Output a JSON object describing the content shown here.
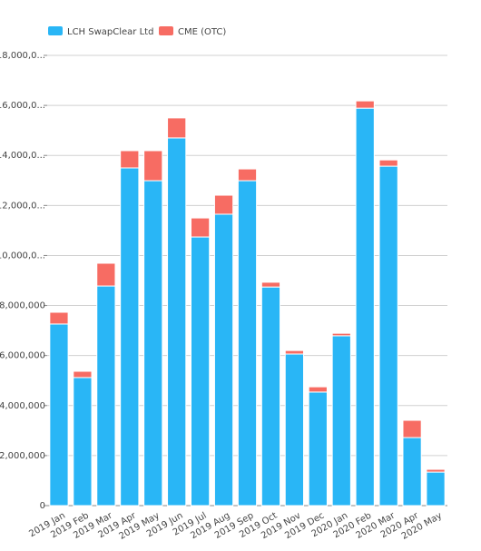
{
  "chart_data": {
    "type": "stacked_bar",
    "categories": [
      "2019 Jan",
      "2019 Feb",
      "2019 Mar",
      "2019 Apr",
      "2019 May",
      "2019 Jun",
      "2019 Jul",
      "2019 Aug",
      "2019 Sep",
      "2019 Oct",
      "2019 Nov",
      "2019 Dec",
      "2020 Jan",
      "2020 Feb",
      "2020 Mar",
      "2020 Apr",
      "2020 May"
    ],
    "series": [
      {
        "name": "LCH SwapClear Ltd",
        "color": "#29b6f6",
        "values": [
          7260000,
          5120000,
          8780000,
          13500000,
          12990000,
          14700000,
          10740000,
          11650000,
          12990000,
          8740000,
          6060000,
          4540000,
          6790000,
          15890000,
          13570000,
          2720000,
          1340000
        ]
      },
      {
        "name": "CME (OTC)",
        "color": "#f76c63",
        "values": [
          470000,
          250000,
          910000,
          690000,
          1200000,
          800000,
          760000,
          760000,
          470000,
          190000,
          140000,
          210000,
          100000,
          290000,
          250000,
          690000,
          110000
        ]
      }
    ],
    "ylim": [
      0,
      18000000
    ],
    "yticks": [
      0,
      {
        "value": 2000000,
        "label": "2,000,000"
      },
      {
        "value": 4000000,
        "label": "4,000,000"
      },
      {
        "value": 6000000,
        "label": "6,000,000"
      },
      {
        "value": 8000000,
        "label": "8,000,000"
      },
      {
        "value": 10000000,
        "label": "10,000,0..."
      },
      {
        "value": 12000000,
        "label": "12,000,0..."
      },
      {
        "value": 14000000,
        "label": "14,000,0..."
      },
      {
        "value": 16000000,
        "label": "16,000,0..."
      },
      {
        "value": 18000000,
        "label": "18,000,0..."
      }
    ],
    "grid": true
  }
}
